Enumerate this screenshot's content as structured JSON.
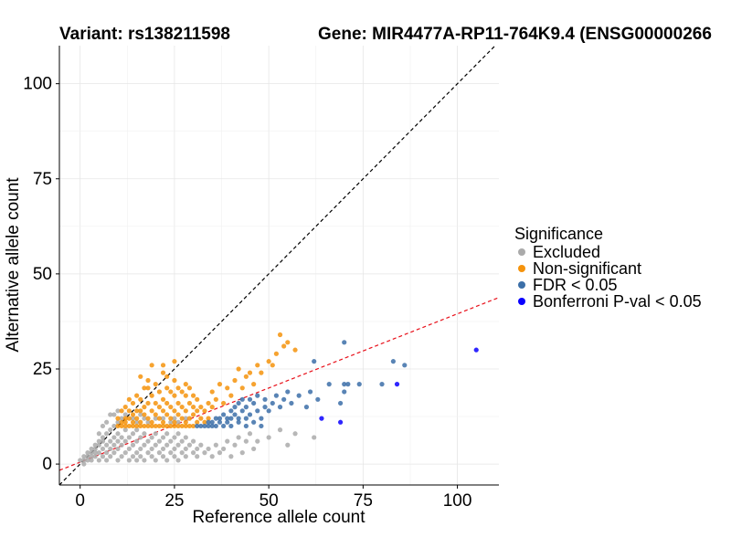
{
  "chart_data": {
    "type": "scatter",
    "title_left": "Variant: rs138211598",
    "title_right": "Gene: MIR4477A-RP11-764K9.4 (ENSG00000266",
    "xlabel": "Reference allele count",
    "ylabel": "Alternative allele count",
    "xlim": [
      -5.5,
      111
    ],
    "ylim": [
      -5.5,
      110
    ],
    "xticks": [
      0,
      25,
      50,
      75,
      100
    ],
    "yticks": [
      0,
      25,
      50,
      75,
      100
    ],
    "grid": true,
    "legend_position": "right",
    "legend": {
      "title": "Significance",
      "items": [
        {
          "label": "Excluded",
          "color": "#aaaaaa"
        },
        {
          "label": "Non-significant",
          "color": "#f5930c"
        },
        {
          "label": "FDR < 0.05",
          "color": "#3c6fa8"
        },
        {
          "label": "Bonferroni P-val < 0.05",
          "color": "#0a00ff"
        }
      ]
    },
    "reference_lines": [
      {
        "name": "identity",
        "slope": 1,
        "intercept": 0,
        "color": "#000000",
        "dash": true
      },
      {
        "name": "fit",
        "slope": 0.39,
        "intercept": 0.5,
        "color": "#e8101a",
        "dash": true
      }
    ],
    "series": [
      {
        "name": "Excluded",
        "color": "#aaaaaa",
        "points": [
          [
            0,
            1
          ],
          [
            1,
            0
          ],
          [
            1,
            1
          ],
          [
            1,
            2
          ],
          [
            2,
            1
          ],
          [
            2,
            2
          ],
          [
            2,
            3
          ],
          [
            3,
            1
          ],
          [
            3,
            2
          ],
          [
            3,
            3
          ],
          [
            3,
            4
          ],
          [
            4,
            2
          ],
          [
            4,
            3
          ],
          [
            4,
            4
          ],
          [
            4,
            5
          ],
          [
            5,
            1
          ],
          [
            5,
            3
          ],
          [
            5,
            5
          ],
          [
            5,
            6
          ],
          [
            6,
            2
          ],
          [
            6,
            4
          ],
          [
            6,
            6
          ],
          [
            6,
            7
          ],
          [
            7,
            1
          ],
          [
            7,
            3
          ],
          [
            7,
            5
          ],
          [
            7,
            8
          ],
          [
            8,
            2
          ],
          [
            8,
            4
          ],
          [
            8,
            6
          ],
          [
            8,
            9
          ],
          [
            9,
            3
          ],
          [
            9,
            5
          ],
          [
            9,
            7
          ],
          [
            9,
            10
          ],
          [
            10,
            1
          ],
          [
            10,
            4
          ],
          [
            10,
            6
          ],
          [
            10,
            8
          ],
          [
            10,
            11
          ],
          [
            11,
            2
          ],
          [
            11,
            5
          ],
          [
            11,
            7
          ],
          [
            12,
            3
          ],
          [
            12,
            6
          ],
          [
            12,
            9
          ],
          [
            13,
            1
          ],
          [
            13,
            4
          ],
          [
            13,
            7
          ],
          [
            14,
            2
          ],
          [
            14,
            5
          ],
          [
            14,
            8
          ],
          [
            15,
            1
          ],
          [
            15,
            3
          ],
          [
            15,
            6
          ],
          [
            15,
            9
          ],
          [
            16,
            2
          ],
          [
            16,
            4
          ],
          [
            16,
            7
          ],
          [
            17,
            1
          ],
          [
            17,
            5
          ],
          [
            17,
            8
          ],
          [
            18,
            3
          ],
          [
            18,
            6
          ],
          [
            19,
            2
          ],
          [
            19,
            4
          ],
          [
            19,
            7
          ],
          [
            20,
            1
          ],
          [
            20,
            5
          ],
          [
            20,
            8
          ],
          [
            21,
            3
          ],
          [
            21,
            6
          ],
          [
            22,
            2
          ],
          [
            22,
            4
          ],
          [
            22,
            7
          ],
          [
            23,
            1
          ],
          [
            23,
            5
          ],
          [
            23,
            8
          ],
          [
            24,
            3
          ],
          [
            24,
            6
          ],
          [
            25,
            2
          ],
          [
            25,
            4
          ],
          [
            25,
            7
          ],
          [
            26,
            1
          ],
          [
            26,
            5
          ],
          [
            26,
            8
          ],
          [
            27,
            3
          ],
          [
            27,
            6
          ],
          [
            28,
            2
          ],
          [
            28,
            4
          ],
          [
            28,
            7
          ],
          [
            29,
            5
          ],
          [
            30,
            3
          ],
          [
            30,
            6
          ],
          [
            31,
            2
          ],
          [
            31,
            4
          ],
          [
            32,
            5
          ],
          [
            33,
            3
          ],
          [
            34,
            4
          ],
          [
            35,
            2
          ],
          [
            36,
            5
          ],
          [
            37,
            3
          ],
          [
            38,
            4
          ],
          [
            39,
            6
          ],
          [
            40,
            2
          ],
          [
            41,
            5
          ],
          [
            42,
            7
          ],
          [
            43,
            3
          ],
          [
            44,
            6
          ],
          [
            45,
            8
          ],
          [
            46,
            4
          ],
          [
            47,
            6
          ],
          [
            50,
            7
          ],
          [
            53,
            9
          ],
          [
            55,
            5
          ],
          [
            57,
            8
          ],
          [
            62,
            7
          ],
          [
            8,
            13
          ],
          [
            9,
            13
          ],
          [
            10,
            14
          ],
          [
            11,
            12
          ],
          [
            12,
            13
          ],
          [
            14,
            12
          ],
          [
            15,
            11
          ],
          [
            16,
            13
          ],
          [
            17,
            12
          ],
          [
            18,
            11
          ],
          [
            20,
            12
          ],
          [
            22,
            12
          ],
          [
            24,
            11
          ],
          [
            25,
            12
          ],
          [
            26,
            11
          ],
          [
            28,
            12
          ],
          [
            5,
            8
          ],
          [
            6,
            10
          ],
          [
            7,
            11
          ]
        ]
      },
      {
        "name": "Non-significant",
        "color": "#f5930c",
        "points": [
          [
            10,
            10
          ],
          [
            10,
            12
          ],
          [
            11,
            10
          ],
          [
            11,
            11
          ],
          [
            11,
            14
          ],
          [
            12,
            10
          ],
          [
            12,
            11
          ],
          [
            12,
            12
          ],
          [
            12,
            15
          ],
          [
            13,
            10
          ],
          [
            13,
            12
          ],
          [
            13,
            14
          ],
          [
            13,
            17
          ],
          [
            14,
            10
          ],
          [
            14,
            11
          ],
          [
            14,
            13
          ],
          [
            14,
            16
          ],
          [
            15,
            10
          ],
          [
            15,
            12
          ],
          [
            15,
            14
          ],
          [
            15,
            18
          ],
          [
            16,
            10
          ],
          [
            16,
            11
          ],
          [
            16,
            14
          ],
          [
            16,
            17
          ],
          [
            17,
            10
          ],
          [
            17,
            13
          ],
          [
            17,
            15
          ],
          [
            17,
            20
          ],
          [
            18,
            10
          ],
          [
            18,
            12
          ],
          [
            18,
            16
          ],
          [
            18,
            22
          ],
          [
            19,
            10
          ],
          [
            19,
            11
          ],
          [
            19,
            14
          ],
          [
            19,
            18
          ],
          [
            20,
            10
          ],
          [
            20,
            13
          ],
          [
            20,
            16
          ],
          [
            20,
            21
          ],
          [
            21,
            10
          ],
          [
            21,
            12
          ],
          [
            21,
            15
          ],
          [
            21,
            19
          ],
          [
            22,
            10
          ],
          [
            22,
            11
          ],
          [
            22,
            14
          ],
          [
            22,
            17
          ],
          [
            22,
            24
          ],
          [
            23,
            10
          ],
          [
            23,
            13
          ],
          [
            23,
            16
          ],
          [
            23,
            20
          ],
          [
            24,
            10
          ],
          [
            24,
            12
          ],
          [
            24,
            15
          ],
          [
            24,
            19
          ],
          [
            25,
            10
          ],
          [
            25,
            11
          ],
          [
            25,
            14
          ],
          [
            25,
            18
          ],
          [
            25,
            22
          ],
          [
            26,
            10
          ],
          [
            26,
            13
          ],
          [
            26,
            16
          ],
          [
            26,
            20
          ],
          [
            27,
            10
          ],
          [
            27,
            12
          ],
          [
            27,
            15
          ],
          [
            27,
            19
          ],
          [
            28,
            10
          ],
          [
            28,
            11
          ],
          [
            28,
            14
          ],
          [
            28,
            18
          ],
          [
            28,
            21
          ],
          [
            29,
            10
          ],
          [
            29,
            12
          ],
          [
            29,
            16
          ],
          [
            29,
            20
          ],
          [
            30,
            10
          ],
          [
            30,
            13
          ],
          [
            30,
            15
          ],
          [
            30,
            18
          ],
          [
            31,
            11
          ],
          [
            31,
            14
          ],
          [
            31,
            17
          ],
          [
            32,
            12
          ],
          [
            32,
            15
          ],
          [
            33,
            11
          ],
          [
            33,
            14
          ],
          [
            34,
            12
          ],
          [
            34,
            16
          ],
          [
            35,
            15
          ],
          [
            35,
            19
          ],
          [
            36,
            17
          ],
          [
            37,
            21
          ],
          [
            38,
            16
          ],
          [
            39,
            20
          ],
          [
            40,
            18
          ],
          [
            41,
            22
          ],
          [
            42,
            25
          ],
          [
            43,
            20
          ],
          [
            44,
            23
          ],
          [
            45,
            24
          ],
          [
            46,
            21
          ],
          [
            47,
            26
          ],
          [
            48,
            24
          ],
          [
            50,
            27
          ],
          [
            51,
            26
          ],
          [
            52,
            29
          ],
          [
            53,
            34
          ],
          [
            54,
            31
          ],
          [
            55,
            32
          ],
          [
            57,
            30
          ],
          [
            19,
            26
          ],
          [
            22,
            26
          ],
          [
            25,
            27
          ],
          [
            16,
            23
          ],
          [
            18,
            20
          ],
          [
            23,
            23
          ]
        ]
      },
      {
        "name": "FDR < 0.05",
        "color": "#3c6fa8",
        "points": [
          [
            31,
            10
          ],
          [
            32,
            10
          ],
          [
            33,
            10
          ],
          [
            34,
            10
          ],
          [
            34,
            11
          ],
          [
            35,
            10
          ],
          [
            35,
            11
          ],
          [
            36,
            10
          ],
          [
            36,
            12
          ],
          [
            37,
            11
          ],
          [
            37,
            12
          ],
          [
            38,
            10
          ],
          [
            38,
            13
          ],
          [
            39,
            11
          ],
          [
            39,
            12
          ],
          [
            40,
            12
          ],
          [
            40,
            14
          ],
          [
            41,
            13
          ],
          [
            41,
            15
          ],
          [
            42,
            12
          ],
          [
            42,
            16
          ],
          [
            43,
            14
          ],
          [
            43,
            17
          ],
          [
            44,
            12
          ],
          [
            44,
            15
          ],
          [
            45,
            13
          ],
          [
            45,
            17
          ],
          [
            46,
            11
          ],
          [
            46,
            16
          ],
          [
            47,
            14
          ],
          [
            47,
            18
          ],
          [
            48,
            12
          ],
          [
            49,
            15
          ],
          [
            49,
            17
          ],
          [
            50,
            14
          ],
          [
            51,
            16
          ],
          [
            52,
            18
          ],
          [
            53,
            15
          ],
          [
            54,
            17
          ],
          [
            55,
            19
          ],
          [
            56,
            16
          ],
          [
            58,
            18
          ],
          [
            60,
            15
          ],
          [
            61,
            19
          ],
          [
            62,
            27
          ],
          [
            63,
            17
          ],
          [
            66,
            21
          ],
          [
            69,
            16
          ],
          [
            70,
            19
          ],
          [
            70,
            21
          ],
          [
            70,
            32
          ],
          [
            71,
            21
          ],
          [
            74,
            21
          ],
          [
            80,
            21
          ],
          [
            83,
            27
          ],
          [
            86,
            26
          ],
          [
            40,
            10
          ],
          [
            42,
            11
          ],
          [
            44,
            10
          ],
          [
            48,
            10
          ]
        ]
      },
      {
        "name": "Bonferroni P-val < 0.05",
        "color": "#0a00ff",
        "points": [
          [
            64,
            12
          ],
          [
            69,
            11
          ],
          [
            84,
            21
          ],
          [
            105,
            30
          ]
        ]
      }
    ]
  }
}
